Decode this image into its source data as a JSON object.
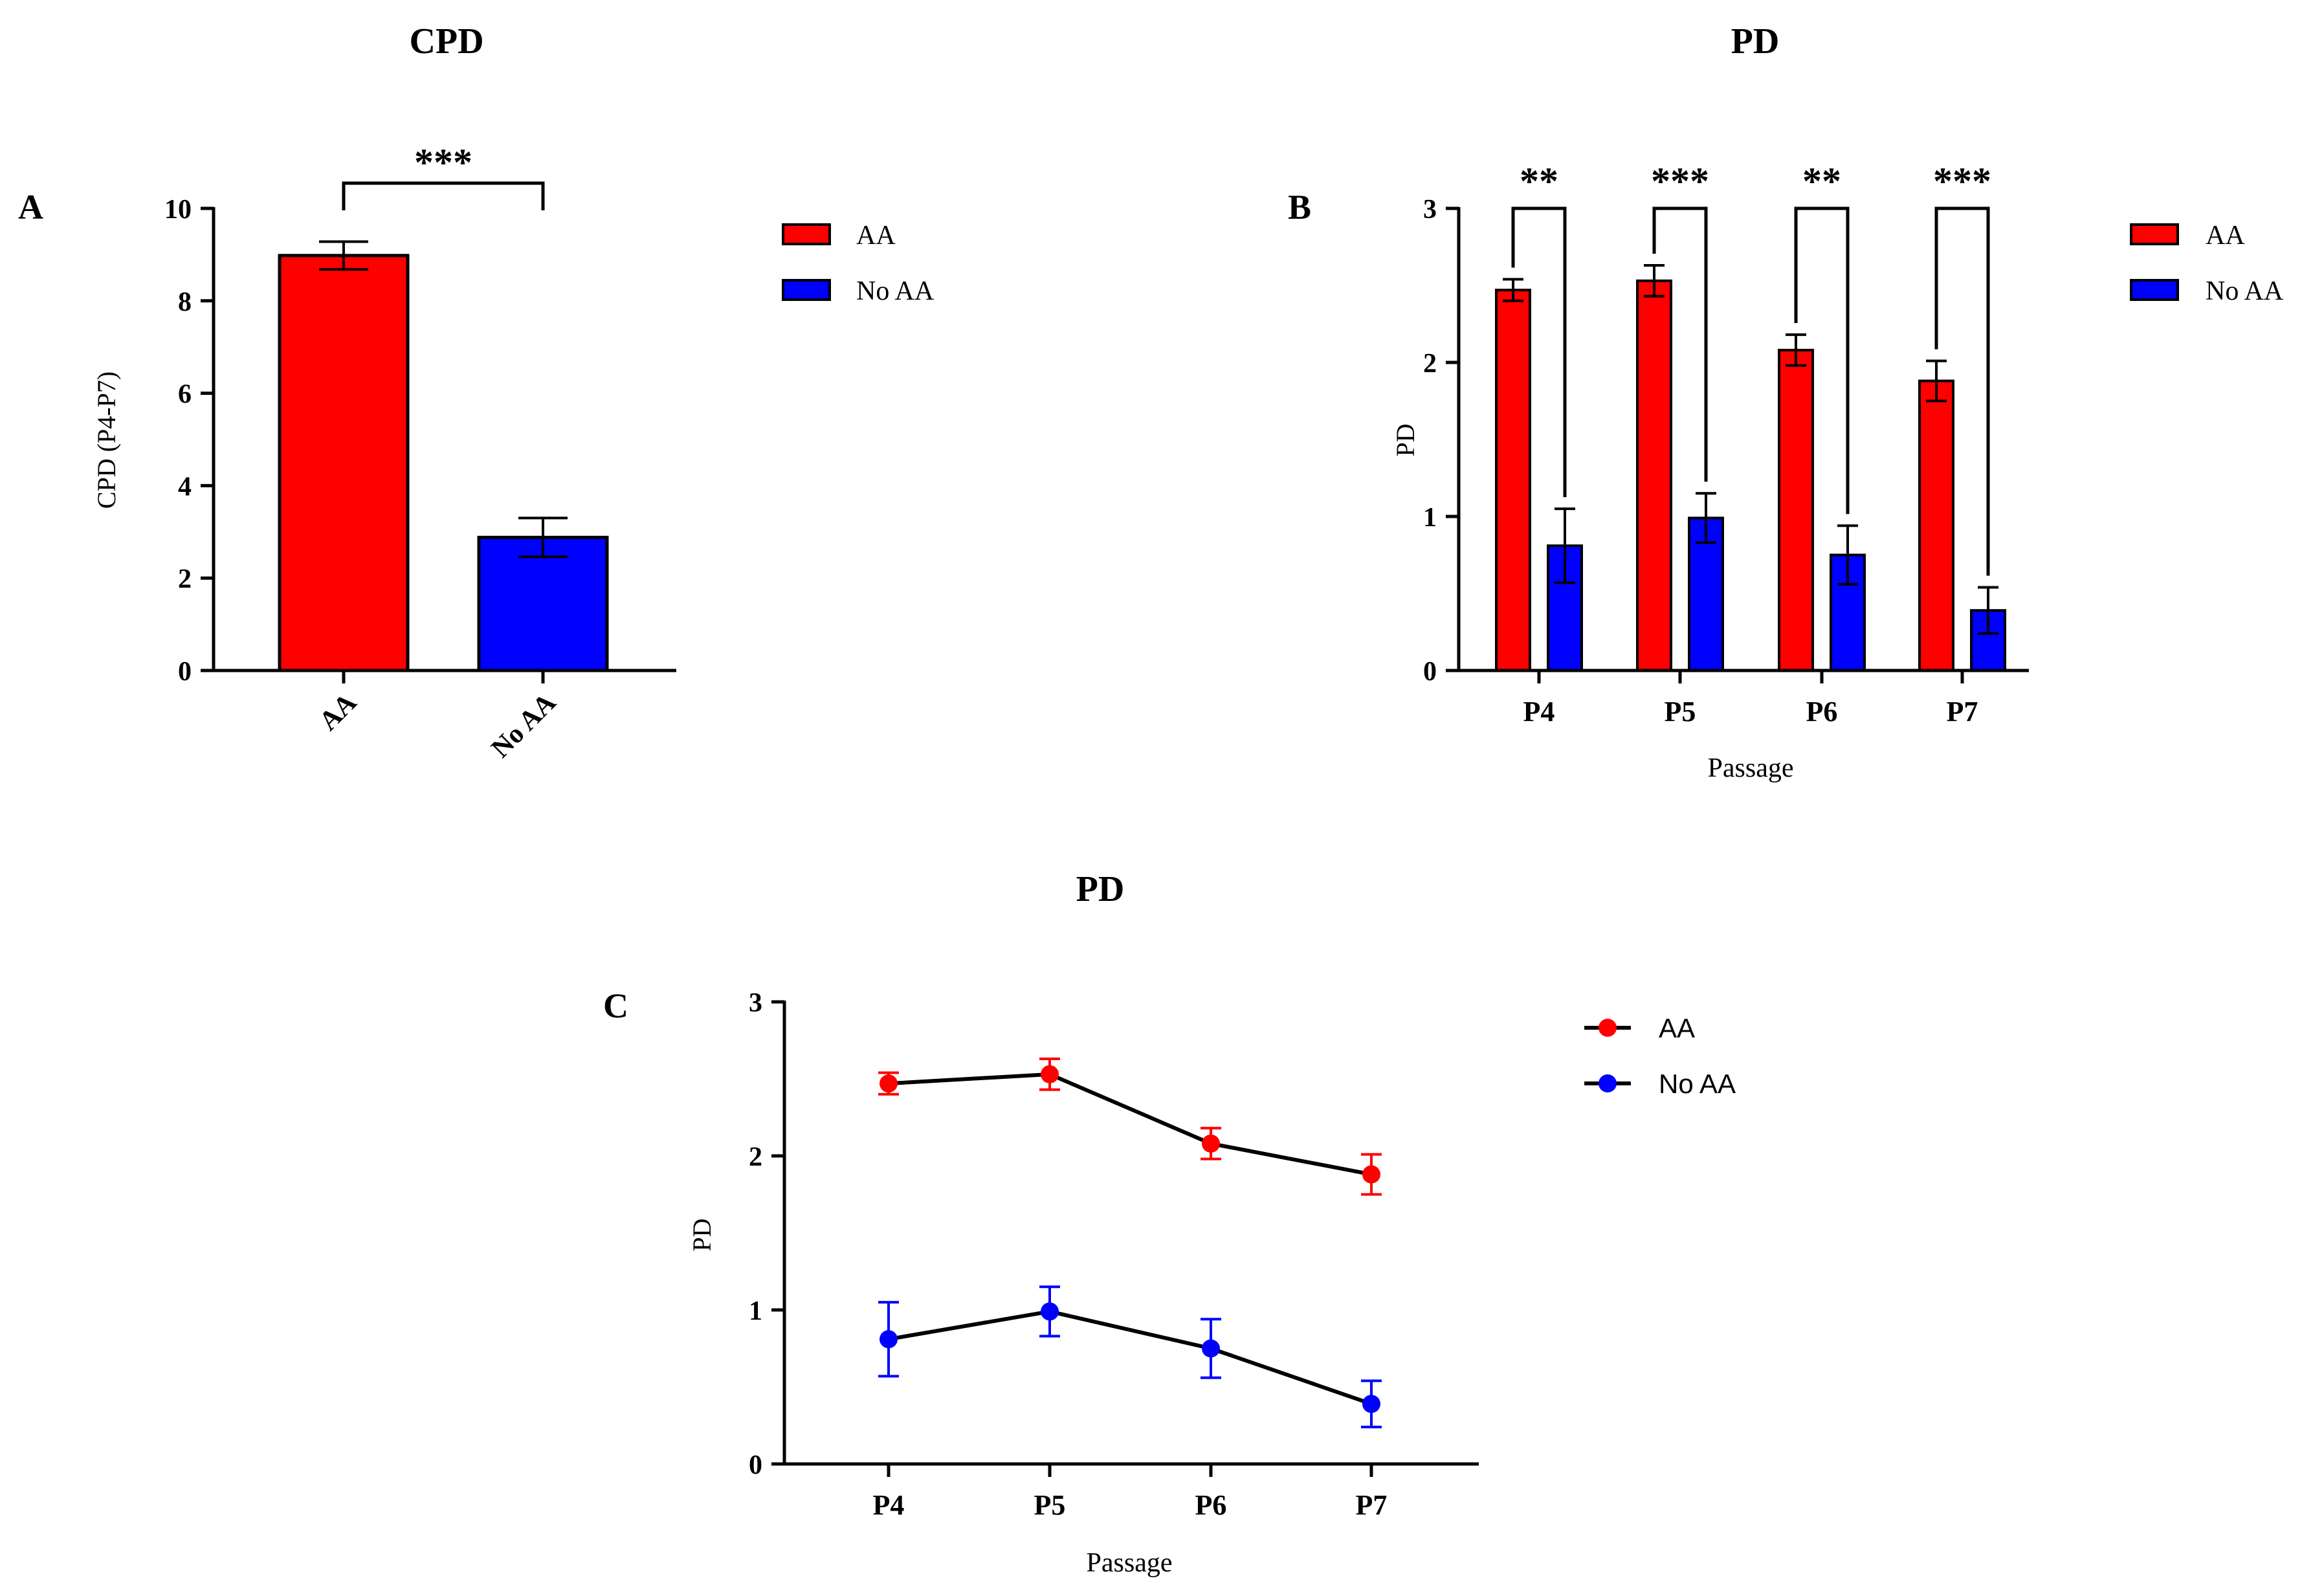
{
  "colors": {
    "aa": "#ff0000",
    "no_aa": "#0000ff",
    "axis": "#000000"
  },
  "chart_data": [
    {
      "panel": "A",
      "type": "bar",
      "title": "CPD",
      "ylabel": "CPD (P4-P7)",
      "xlabel": "",
      "ylim": [
        0,
        10
      ],
      "yticks": [
        "0",
        "2",
        "4",
        "6",
        "8",
        "10"
      ],
      "categories": [
        "AA",
        "No AA"
      ],
      "values": [
        8.98,
        2.88
      ],
      "errors": [
        0.3,
        0.42
      ],
      "significance": [
        {
          "from": 0,
          "to": 1,
          "label": "***"
        }
      ],
      "legend": [
        {
          "name": "AA"
        },
        {
          "name": "No AA"
        }
      ],
      "legend_position": "right"
    },
    {
      "panel": "B",
      "type": "bar",
      "title": "PD",
      "ylabel": "PD",
      "xlabel": "Passage",
      "ylim": [
        0,
        3
      ],
      "yticks": [
        "0",
        "1",
        "2",
        "3"
      ],
      "categories": [
        "P4",
        "P5",
        "P6",
        "P7"
      ],
      "series": [
        {
          "name": "AA",
          "values": [
            2.47,
            2.53,
            2.08,
            1.88
          ],
          "errors": [
            0.07,
            0.1,
            0.1,
            0.13
          ]
        },
        {
          "name": "No AA",
          "values": [
            0.81,
            0.99,
            0.75,
            0.39
          ],
          "errors": [
            0.24,
            0.16,
            0.19,
            0.15
          ]
        }
      ],
      "significance": [
        "**",
        "***",
        "**",
        "***"
      ],
      "legend_position": "right"
    },
    {
      "panel": "C",
      "type": "line",
      "title": "PD",
      "ylabel": "PD",
      "xlabel": "Passage",
      "ylim": [
        0,
        3
      ],
      "yticks": [
        "0",
        "1",
        "2",
        "3"
      ],
      "categories": [
        "P4",
        "P5",
        "P6",
        "P7"
      ],
      "series": [
        {
          "name": "AA",
          "values": [
            2.47,
            2.53,
            2.08,
            1.88
          ],
          "errors": [
            0.07,
            0.1,
            0.1,
            0.13
          ]
        },
        {
          "name": "No AA",
          "values": [
            0.81,
            0.99,
            0.75,
            0.39
          ],
          "errors": [
            0.24,
            0.16,
            0.19,
            0.15
          ]
        }
      ],
      "legend_position": "right"
    }
  ]
}
